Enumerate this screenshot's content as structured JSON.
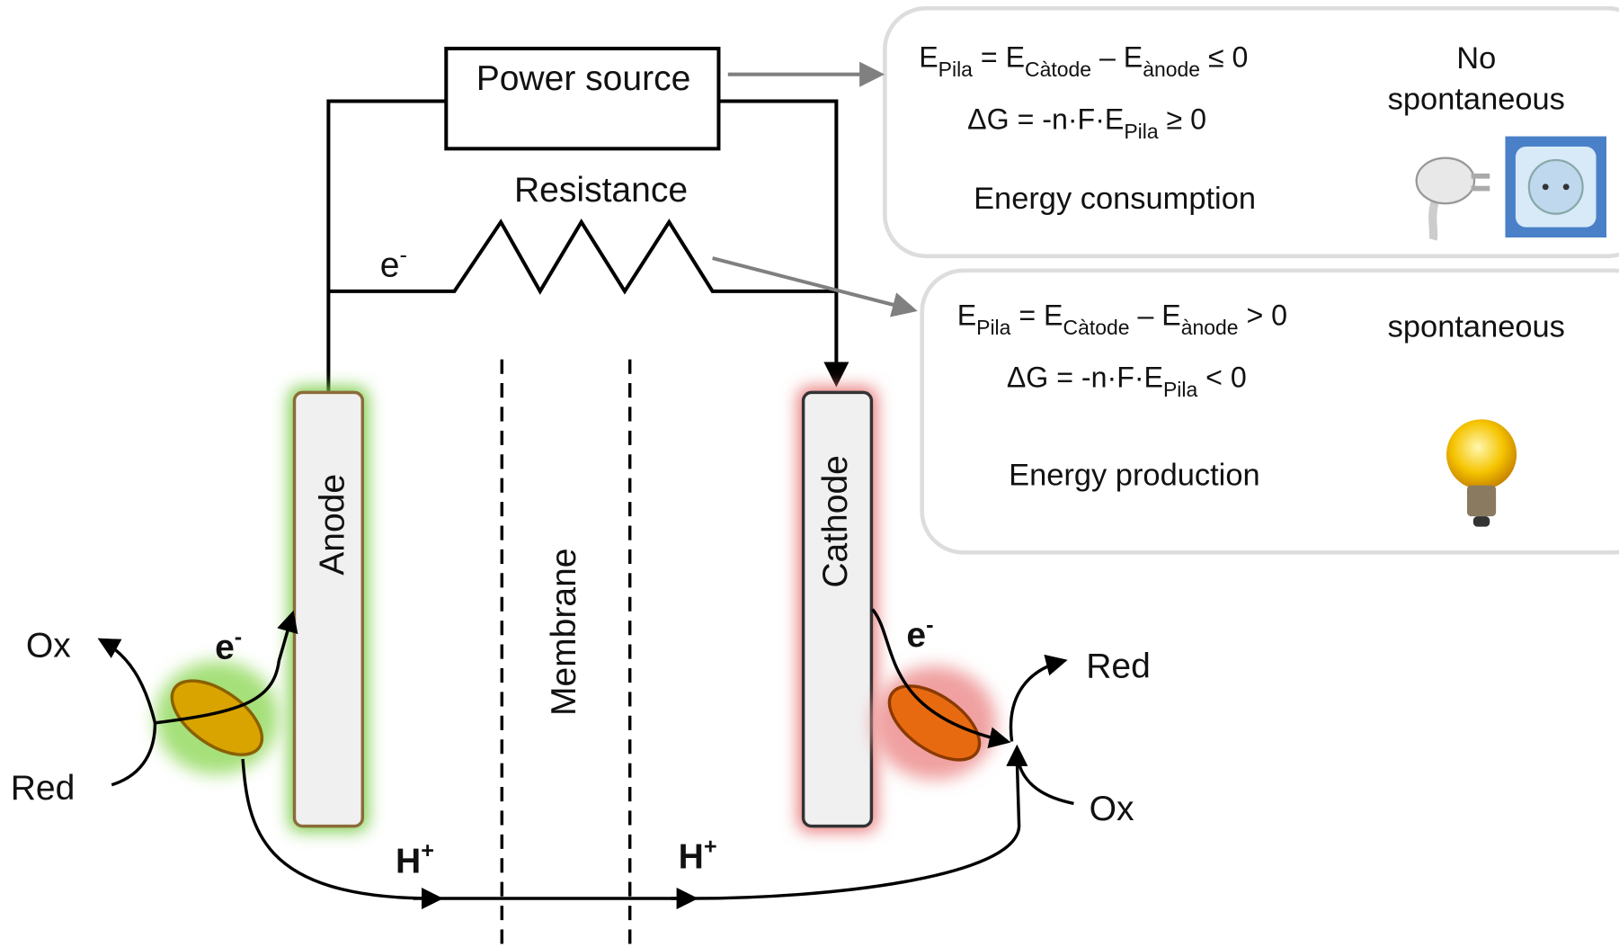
{
  "circuit": {
    "power_source": "Power source",
    "resistance": "Resistance",
    "electron": [
      "e",
      "-"
    ]
  },
  "electrodes": {
    "anode": "Anode",
    "membrane": "Membrane",
    "cathode": "Cathode"
  },
  "anode_side": {
    "ox": "Ox",
    "red": "Red",
    "electron": [
      "e",
      "-"
    ],
    "proton": [
      "H",
      "+"
    ]
  },
  "cathode_side": {
    "red": "Red",
    "ox": "Ox",
    "electron": [
      "e",
      "-"
    ],
    "proton": [
      "H",
      "+"
    ]
  },
  "panels": [
    {
      "equations": [
        [
          "E",
          "Pila",
          " = E",
          "Càtode",
          " – E",
          "ànode",
          " ≤ 0"
        ],
        [
          "ΔG = -n·F·E",
          "Pila",
          " ≥ 0"
        ]
      ],
      "status": [
        "No",
        "spontaneous"
      ],
      "label": "Energy consumption"
    },
    {
      "equations": [
        [
          "E",
          "Pila",
          " = E",
          "Càtode",
          " – E",
          "ànode",
          " > 0"
        ],
        [
          "ΔG = -n·F·E",
          "Pila",
          " < 0"
        ]
      ],
      "status": [
        "spontaneous"
      ],
      "label": "Energy production"
    }
  ]
}
